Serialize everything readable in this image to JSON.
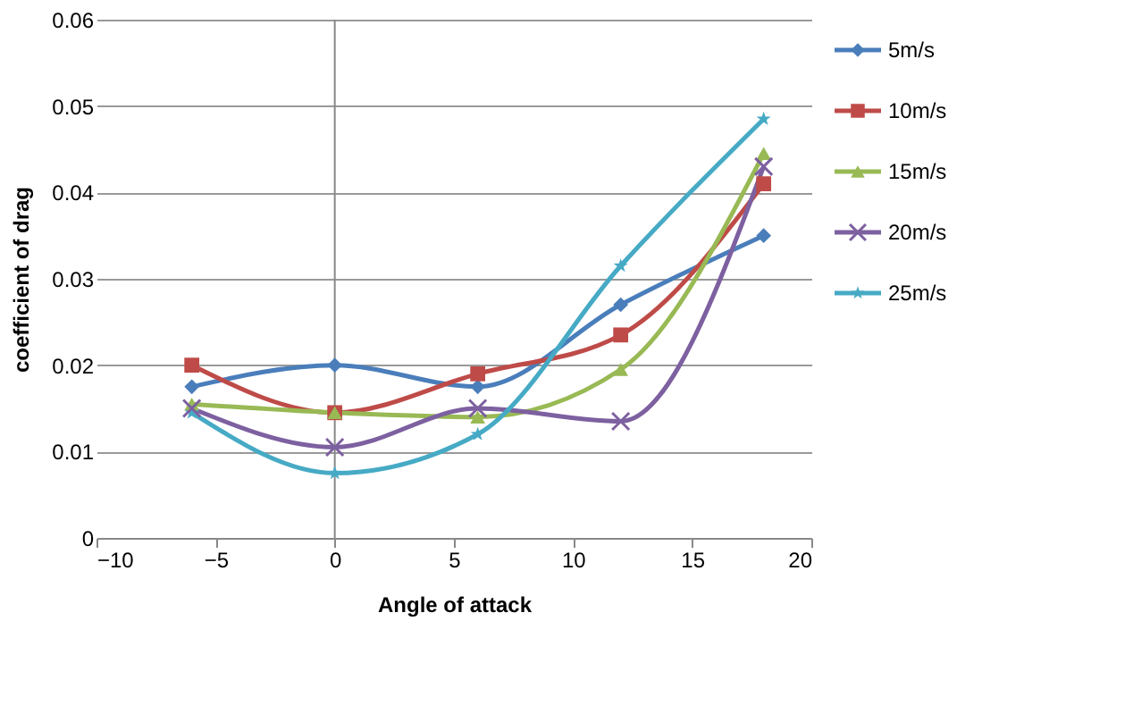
{
  "chart_data": {
    "type": "line",
    "xlabel": "Angle of attack",
    "ylabel": "coefficient of drag",
    "x": [
      -6,
      0,
      6,
      12,
      18
    ],
    "series": [
      {
        "name": "5m/s",
        "color": "#4a7ebb",
        "marker": "diamond",
        "values": [
          0.0175,
          0.02,
          0.0175,
          0.027,
          0.035
        ]
      },
      {
        "name": "10m/s",
        "color": "#be4b48",
        "marker": "square",
        "values": [
          0.02,
          0.0145,
          0.019,
          0.0235,
          0.041
        ]
      },
      {
        "name": "15m/s",
        "color": "#98b954",
        "marker": "triangle",
        "values": [
          0.0155,
          0.0145,
          0.014,
          0.0195,
          0.0445
        ]
      },
      {
        "name": "20m/s",
        "color": "#7d60a0",
        "marker": "cross",
        "values": [
          0.015,
          0.0105,
          0.015,
          0.0135,
          0.043
        ]
      },
      {
        "name": "25m/s",
        "color": "#46aac5",
        "marker": "star",
        "values": [
          0.0145,
          0.0075,
          0.012,
          0.0315,
          0.0485
        ]
      }
    ],
    "xlim": [
      -10,
      20
    ],
    "xticks": [
      -10,
      -5,
      0,
      5,
      10,
      15,
      20
    ],
    "ylim": [
      0,
      0.06
    ],
    "yticks": [
      0,
      0.01,
      0.02,
      0.03,
      0.04,
      0.05,
      0.06
    ],
    "grid": "y",
    "legend": "right",
    "line_style": "solid"
  }
}
